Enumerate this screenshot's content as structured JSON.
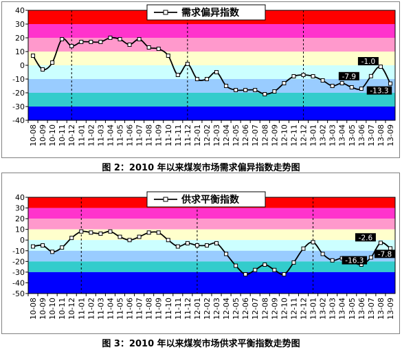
{
  "chart_data": [
    {
      "type": "line",
      "title": "需求偏异指数",
      "caption": "图 2：2010 年以来煤炭市场需求偏异指数走势图",
      "legend_position": "top-center",
      "ylim": [
        -40,
        40
      ],
      "yticks": [
        40,
        30,
        20,
        10,
        0,
        -10,
        -20,
        -30,
        -40
      ],
      "x_tick_labels": [
        "10-08",
        "10-09",
        "10-10",
        "10-11",
        "10-12",
        "11-01",
        "11-02",
        "11-03",
        "11-04",
        "11-05",
        "11-06",
        "11-07",
        "11-08",
        "11-09",
        "11-10",
        "11-11",
        "11-12",
        "12-01",
        "12-02",
        "12-03",
        "12-04",
        "12-05",
        "12-06",
        "12-07",
        "12-08",
        "12-09",
        "12-10",
        "12-11",
        "12-12",
        "13-01",
        "13-02",
        "13-03",
        "13-04",
        "13-05",
        "13-06",
        "13-07",
        "13-08",
        "13-09"
      ],
      "bands": [
        {
          "from": 30,
          "to": 40,
          "color": "#ff0000"
        },
        {
          "from": 20,
          "to": 30,
          "color": "#ff33cc"
        },
        {
          "from": 10,
          "to": 20,
          "color": "#ff99cc"
        },
        {
          "from": 0,
          "to": 10,
          "color": "#ffffcc"
        },
        {
          "from": -10,
          "to": 0,
          "color": "#ccffff"
        },
        {
          "from": -20,
          "to": -10,
          "color": "#99ccff"
        },
        {
          "from": -30,
          "to": -20,
          "color": "#33cccc"
        },
        {
          "from": -40,
          "to": -30,
          "color": "#0000ff"
        }
      ],
      "year_dividers": [
        "10-12",
        "11-12",
        "12-12"
      ],
      "series": [
        {
          "name": "需求偏异指数",
          "x": [
            "10-08",
            "10-09",
            "10-10",
            "10-11",
            "10-12",
            "11-01",
            "11-02",
            "11-03",
            "11-04",
            "11-05",
            "11-06",
            "11-07",
            "11-08",
            "11-09",
            "11-10",
            "11-11",
            "11-12",
            "12-01",
            "12-02",
            "12-03",
            "12-04",
            "12-05",
            "12-06",
            "12-07",
            "12-08",
            "12-09",
            "12-10",
            "12-11",
            "12-12",
            "13-01",
            "13-02",
            "13-03",
            "13-04",
            "13-05",
            "13-06",
            "13-07",
            "13-08",
            "13-09"
          ],
          "values": [
            7,
            -3,
            2,
            19,
            14,
            17,
            17,
            17,
            20,
            19,
            15,
            19,
            13,
            12,
            7,
            -7,
            1,
            -10,
            -10,
            -5,
            -15,
            -18,
            -18,
            -18,
            -21,
            -19,
            -13,
            -8,
            -7,
            -8,
            -11,
            -15,
            -13,
            -16,
            -17,
            -7.9,
            -1.0,
            -13.3
          ]
        }
      ],
      "annotations": [
        {
          "text": "-1.0",
          "x": "13-08",
          "value": -1.0
        },
        {
          "text": "-7.9",
          "x": "13-07",
          "value": -7.9
        },
        {
          "text": "-13.3",
          "x": "13-09",
          "value": -13.3
        }
      ]
    },
    {
      "type": "line",
      "title": "供求平衡指数",
      "caption": "图 3：2010 年以来煤炭市场供求平衡指数走势图",
      "legend_position": "top-center",
      "ylim": [
        -50,
        40
      ],
      "yticks": [
        40,
        30,
        20,
        10,
        0,
        -10,
        -20,
        -30,
        -40,
        -50
      ],
      "x_tick_labels": [
        "10-08",
        "10-09",
        "10-10",
        "10-11",
        "10-12",
        "11-01",
        "11-02",
        "11-03",
        "11-04",
        "11-05",
        "11-06",
        "11-07",
        "11-08",
        "11-09",
        "11-10",
        "11-11",
        "11-12",
        "12-01",
        "12-02",
        "12-03",
        "12-04",
        "12-05",
        "12-06",
        "12-07",
        "12-08",
        "12-09",
        "12-10",
        "12-11",
        "12-12",
        "13-01",
        "13-02",
        "13-03",
        "13-04",
        "13-05",
        "13-06",
        "13-07",
        "13-08",
        "13-09"
      ],
      "bands": [
        {
          "from": 30,
          "to": 40,
          "color": "#ff0000"
        },
        {
          "from": 20,
          "to": 30,
          "color": "#ff33cc"
        },
        {
          "from": 10,
          "to": 20,
          "color": "#ff99cc"
        },
        {
          "from": 0,
          "to": 10,
          "color": "#ffffcc"
        },
        {
          "from": -10,
          "to": 0,
          "color": "#ccffff"
        },
        {
          "from": -20,
          "to": -10,
          "color": "#99ccff"
        },
        {
          "from": -30,
          "to": -20,
          "color": "#33cccc"
        },
        {
          "from": -50,
          "to": -30,
          "color": "#0000ff"
        }
      ],
      "year_dividers": [
        "11-01",
        "12-01",
        "13-01"
      ],
      "series": [
        {
          "name": "供求平衡指数",
          "x": [
            "10-08",
            "10-09",
            "10-10",
            "10-11",
            "10-12",
            "11-01",
            "11-02",
            "11-03",
            "11-04",
            "11-05",
            "11-06",
            "11-07",
            "11-08",
            "11-09",
            "11-10",
            "11-11",
            "11-12",
            "12-01",
            "12-02",
            "12-03",
            "12-04",
            "12-05",
            "12-06",
            "12-07",
            "12-08",
            "12-09",
            "12-10",
            "12-11",
            "12-12",
            "13-01",
            "13-02",
            "13-03",
            "13-04",
            "13-05",
            "13-06",
            "13-07",
            "13-08",
            "13-09"
          ],
          "values": [
            -6,
            -5,
            -11,
            -7,
            2,
            8,
            7,
            6,
            8,
            3,
            0,
            3,
            7,
            7,
            0,
            -6,
            -3,
            -5,
            -5,
            -3,
            -13,
            -24,
            -32,
            -28,
            -23,
            -28,
            -32,
            -21,
            -8,
            -2,
            -13,
            -19,
            -17,
            -20,
            -23,
            -16.3,
            -2.6,
            -7.8
          ]
        }
      ],
      "annotations": [
        {
          "text": "-2.6",
          "x": "13-08",
          "value": -2.6
        },
        {
          "text": "-7.8",
          "x": "13-09",
          "value": -7.8
        },
        {
          "text": "-16.3",
          "x": "13-07",
          "value": -16.3
        }
      ]
    }
  ]
}
